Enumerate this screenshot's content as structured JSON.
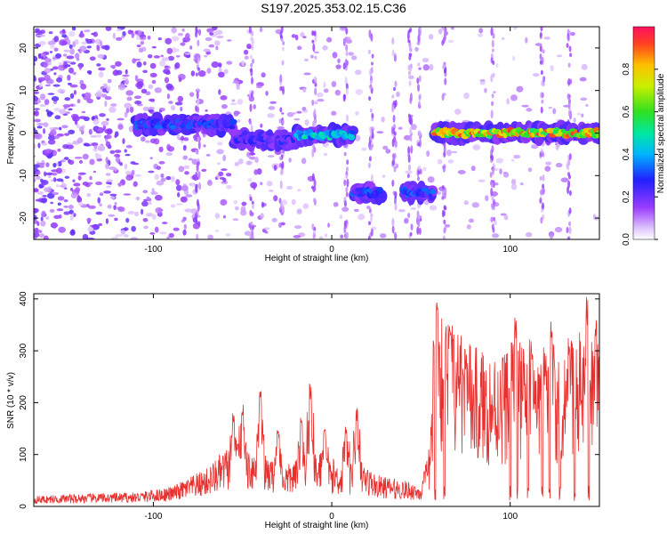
{
  "title": "S197.2025.353.02.15.C36",
  "chart_data": [
    {
      "type": "heatmap",
      "name": "spectrogram",
      "xlabel": "Height of straight line (km)",
      "ylabel": "Frequency (Hz)",
      "xlim": [
        -167,
        150
      ],
      "ylim": [
        -25,
        25
      ],
      "xticks": [
        -100,
        0,
        100
      ],
      "yticks": [
        -20,
        -10,
        0,
        10,
        20
      ],
      "colorbar": {
        "label": "Normalized spectral amplitude",
        "ticks": [
          "0.0",
          "0.2",
          "0.4",
          "0.6",
          "0.8"
        ],
        "range": [
          0,
          1
        ]
      },
      "features": [
        {
          "x_start": -110,
          "x_end": -55,
          "freq": 2,
          "amplitude": 0.35
        },
        {
          "x_start": -55,
          "x_end": -20,
          "freq": -1.5,
          "amplitude": 0.3
        },
        {
          "x_start": -20,
          "x_end": 12,
          "freq": -0.5,
          "amplitude": 0.55
        },
        {
          "x_start": 12,
          "x_end": 28,
          "freq": -14,
          "amplitude": 0.35
        },
        {
          "x_start": 40,
          "x_end": 57,
          "freq": -14,
          "amplitude": 0.35
        },
        {
          "x_start": 57,
          "x_end": 150,
          "freq": 0,
          "amplitude": 0.95
        }
      ]
    },
    {
      "type": "line",
      "name": "snr",
      "xlabel": "Height of straight line (km)",
      "ylabel": "SNR (10 * v/v)",
      "xlim": [
        -167,
        150
      ],
      "ylim": [
        0,
        410
      ],
      "xticks": [
        -100,
        0,
        100
      ],
      "yticks": [
        0,
        100,
        200,
        300,
        400
      ],
      "color": "#e8302e",
      "envelope": {
        "x": [
          -167,
          -140,
          -110,
          -90,
          -70,
          -55,
          -45,
          -35,
          -25,
          -15,
          -5,
          5,
          15,
          25,
          35,
          45,
          50,
          55,
          57,
          60,
          65,
          70,
          80,
          90,
          100,
          110,
          120,
          130,
          140,
          150
        ],
        "y": [
          15,
          18,
          20,
          28,
          55,
          95,
          85,
          70,
          60,
          75,
          80,
          60,
          70,
          45,
          40,
          35,
          30,
          90,
          260,
          300,
          280,
          250,
          230,
          220,
          235,
          240,
          230,
          240,
          250,
          230
        ]
      },
      "peaks": [
        {
          "x": -55,
          "y": 180
        },
        {
          "x": -50,
          "y": 200
        },
        {
          "x": -40,
          "y": 225
        },
        {
          "x": -30,
          "y": 150
        },
        {
          "x": -17,
          "y": 175
        },
        {
          "x": -12,
          "y": 240
        },
        {
          "x": -4,
          "y": 150
        },
        {
          "x": 8,
          "y": 160
        },
        {
          "x": 14,
          "y": 190
        },
        {
          "x": 59,
          "y": 400
        },
        {
          "x": 66,
          "y": 350
        },
        {
          "x": 75,
          "y": 310
        },
        {
          "x": 103,
          "y": 370
        },
        {
          "x": 112,
          "y": 330
        },
        {
          "x": 123,
          "y": 360
        },
        {
          "x": 133,
          "y": 340
        },
        {
          "x": 143,
          "y": 410
        },
        {
          "x": 148,
          "y": 380
        }
      ],
      "dropouts": [
        58,
        63,
        100,
        104,
        110,
        118,
        122,
        128,
        136,
        144
      ]
    }
  ]
}
